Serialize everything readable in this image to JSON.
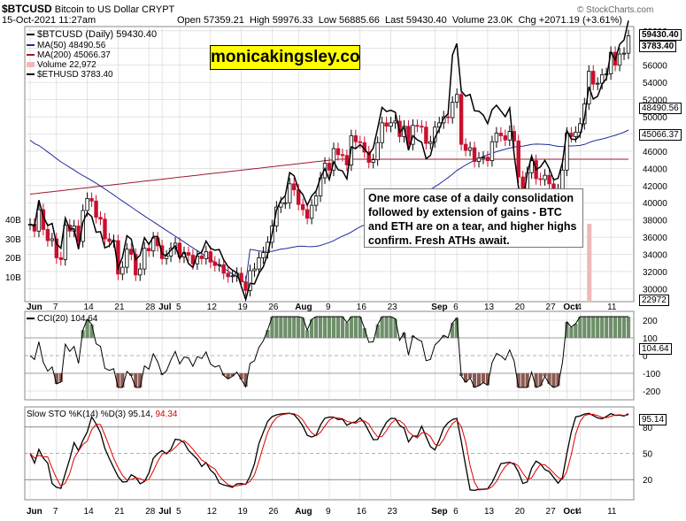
{
  "header": {
    "symbol": "$BTCUSD",
    "description": "Bitcoin to US Dollar",
    "exchange": "CRYPT",
    "datetime": "15-Oct-2021 11:27am",
    "open_label": "Open",
    "open": "57359.21",
    "high_label": "High",
    "high": "59976.33",
    "low_label": "Low",
    "low": "56885.66",
    "last_label": "Last",
    "last": "59430.40",
    "volume_label": "Volume",
    "volume": "23.0K",
    "chg_label": "Chg",
    "chg": "+2071.19 (+3.61%)",
    "copyright": "© StockCharts.com"
  },
  "watermark": "monicakingsley.co",
  "callout": "One more case of a daily consolidation followed by extension of gains - BTC and ETH are on a tear, and higher highs confirm. Fresh ATHs await.",
  "legend": {
    "price": "$BTCUSD (Daily) 59430.40",
    "ma50": "MA(50) 48490.56",
    "ma200": "MA(200) 45066.37",
    "volume": "Volume 22,972",
    "eth": "$ETHUSD 3783.40"
  },
  "colors": {
    "up": "#000000",
    "down": "#c8102e",
    "ma50": "#1f2c9a",
    "ma200": "#9b1b2e",
    "cci_fill": "#6e8f6a",
    "cci_neg": "#8a5a52",
    "sto_k": "#000000",
    "sto_d": "#e00000",
    "vol": "#f0b8b8",
    "grid": "#d3d3d3"
  },
  "chart_data": [
    {
      "type": "candlestick",
      "name": "$BTCUSD (Daily)",
      "dates": [
        "Jun 1",
        "Jun 2",
        "Jun 3",
        "Jun 4",
        "Jun 5",
        "Jun 6",
        "Jun 7",
        "Jun 8",
        "Jun 9",
        "Jun 10",
        "Jun 11",
        "Jun 12",
        "Jun 13",
        "Jun 14",
        "Jun 15",
        "Jun 16",
        "Jun 17",
        "Jun 18",
        "Jun 19",
        "Jun 20",
        "Jun 21",
        "Jun 22",
        "Jun 23",
        "Jun 24",
        "Jun 25",
        "Jun 26",
        "Jun 27",
        "Jun 28",
        "Jun 29",
        "Jun 30",
        "Jul 1",
        "Jul 2",
        "Jul 3",
        "Jul 4",
        "Jul 5",
        "Jul 6",
        "Jul 7",
        "Jul 8",
        "Jul 9",
        "Jul 10",
        "Jul 11",
        "Jul 12",
        "Jul 13",
        "Jul 14",
        "Jul 15",
        "Jul 16",
        "Jul 17",
        "Jul 18",
        "Jul 19",
        "Jul 20",
        "Jul 21",
        "Jul 22",
        "Jul 23",
        "Jul 24",
        "Jul 25",
        "Jul 26",
        "Jul 27",
        "Jul 28",
        "Jul 29",
        "Jul 30",
        "Jul 31",
        "Aug 1",
        "Aug 2",
        "Aug 3",
        "Aug 4",
        "Aug 5",
        "Aug 6",
        "Aug 7",
        "Aug 8",
        "Aug 9",
        "Aug 10",
        "Aug 11",
        "Aug 12",
        "Aug 13",
        "Aug 14",
        "Aug 15",
        "Aug 16",
        "Aug 17",
        "Aug 18",
        "Aug 19",
        "Aug 20",
        "Aug 21",
        "Aug 22",
        "Aug 23",
        "Aug 24",
        "Aug 25",
        "Aug 26",
        "Aug 27",
        "Aug 28",
        "Aug 29",
        "Aug 30",
        "Aug 31",
        "Sep 1",
        "Sep 2",
        "Sep 3",
        "Sep 4",
        "Sep 5",
        "Sep 6",
        "Sep 7",
        "Sep 8",
        "Sep 9",
        "Sep 10",
        "Sep 11",
        "Sep 12",
        "Sep 13",
        "Sep 14",
        "Sep 15",
        "Sep 16",
        "Sep 17",
        "Sep 18",
        "Sep 19",
        "Sep 20",
        "Sep 21",
        "Sep 22",
        "Sep 23",
        "Sep 24",
        "Sep 25",
        "Sep 26",
        "Sep 27",
        "Sep 28",
        "Sep 29",
        "Sep 30",
        "Oct 1",
        "Oct 2",
        "Oct 3",
        "Oct 4",
        "Oct 5",
        "Oct 6",
        "Oct 7",
        "Oct 8",
        "Oct 9",
        "Oct 10",
        "Oct 11",
        "Oct 12",
        "Oct 13",
        "Oct 14",
        "Oct 15"
      ],
      "close": [
        37500,
        36700,
        39200,
        36900,
        35600,
        35800,
        33600,
        33400,
        37400,
        36700,
        37300,
        35500,
        39100,
        40500,
        40200,
        38300,
        38100,
        35800,
        35500,
        35600,
        31700,
        32500,
        34600,
        34000,
        31600,
        32300,
        34700,
        34400,
        35900,
        35000,
        33500,
        33800,
        34700,
        35300,
        33700,
        34200,
        33900,
        32900,
        33800,
        33500,
        34300,
        33100,
        32700,
        32800,
        31800,
        31400,
        31500,
        31800,
        30800,
        29800,
        32100,
        32300,
        33600,
        34200,
        35400,
        37300,
        39500,
        40000,
        40000,
        42200,
        41500,
        39800,
        39200,
        38200,
        39700,
        40800,
        42900,
        44600,
        43800,
        46300,
        45600,
        45500,
        44400,
        47800,
        47100,
        47000,
        45900,
        44700,
        45000,
        47000,
        49300,
        48900,
        49300,
        49500,
        47700,
        48900,
        46800,
        49000,
        48900,
        48800,
        46900,
        47100,
        48800,
        49300,
        50000,
        49900,
        51700,
        52600,
        46800,
        46100,
        46400,
        44800,
        45200,
        45300,
        44900,
        47100,
        48100,
        47800,
        47300,
        48300,
        47200,
        43000,
        40700,
        43500,
        44900,
        42800,
        42700,
        43200,
        42200,
        41000,
        41500,
        43800,
        48100,
        47700,
        48200,
        49200,
        51500,
        55300,
        53800,
        53900,
        54900,
        55000,
        57500,
        56000,
        57300,
        57400,
        59430
      ],
      "ylim": [
        28500,
        60500
      ]
    },
    {
      "type": "line",
      "name": "MA(50)",
      "last": 48490.56
    },
    {
      "type": "line",
      "name": "MA(200)",
      "last": 45066.37
    },
    {
      "type": "line",
      "name": "$ETHUSD",
      "last": 3783.4
    },
    {
      "type": "bar",
      "name": "Volume",
      "last": 22972
    },
    {
      "type": "line",
      "name": "CCI(20)",
      "last": 104.64,
      "levels": [
        -100,
        0,
        100
      ]
    },
    {
      "type": "line",
      "name": "Slow STO %K(14) %D(3)",
      "k_last": 95.14,
      "d_last": 94.34,
      "levels": [
        20,
        50,
        80
      ]
    }
  ],
  "axes": {
    "price_ticks": [
      "60000",
      "58000",
      "56000",
      "54000",
      "52000",
      "50000",
      "48000",
      "46000",
      "44000",
      "42000",
      "40000",
      "38000",
      "36000",
      "34000",
      "32000",
      "30000"
    ],
    "volume_ticks": [
      "40B",
      "30B",
      "20B",
      "10B"
    ],
    "cci_ticks": [
      "200",
      "100",
      "0",
      "-100",
      "-200"
    ],
    "sto_ticks": [
      "80",
      "50",
      "20"
    ],
    "x_ticks": [
      "Jun",
      "7",
      "14",
      "21",
      "28",
      "Jul",
      "5",
      "12",
      "19",
      "26",
      "Aug",
      "9",
      "16",
      "23",
      "Sep",
      "6",
      "13",
      "20",
      "27",
      "Oct",
      "4",
      "11"
    ],
    "tags": {
      "price": "59430.40",
      "eth": "3783.40",
      "ma50": "48490.56",
      "ma200": "45066.37",
      "vol": "22972",
      "cci": "104.64",
      "sto": "95.14"
    }
  },
  "cci_label": "CCI(20) 104.64",
  "sto_label_prefix": "Slow STO %K(14) %D(3) 95.14,",
  "sto_label_d": "94.34"
}
